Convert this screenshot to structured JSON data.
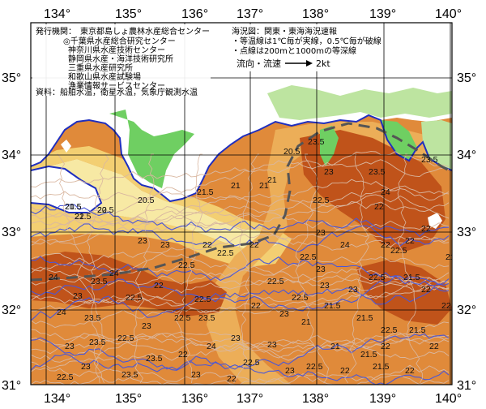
{
  "map": {
    "lon_labels": [
      "134°",
      "135°",
      "136°",
      "137°",
      "138°",
      "139°",
      "140°"
    ],
    "lat_labels": [
      "35°",
      "34°",
      "33°",
      "32°",
      "31°"
    ],
    "colors": {
      "sea_warm": "#e08a3a",
      "sea_hot": "#c0531a",
      "sea_mid": "#ecae58",
      "sea_cool": "#f3cf72",
      "sea_cold": "#f7e9a4",
      "land_white": "#ffffff",
      "land_green_light": "#bde4a0",
      "land_green": "#6fcf62",
      "coast_blue": "#1f2fbf",
      "isotherm_light": "#d9b7a0",
      "isotherm_blue": "#4a57d8",
      "current_line": "#555555",
      "grid": "#000000"
    },
    "isotherm_labels": [
      "20.5",
      "21",
      "20.5",
      "20.5",
      "21.5",
      "21",
      "21",
      "20.5",
      "21",
      "22",
      "22.5",
      "23",
      "23.5",
      "23",
      "23.5",
      "24",
      "23.5",
      "22",
      "22",
      "22",
      "22.5",
      "23",
      "23",
      "22.5",
      "22",
      "22.5",
      "22",
      "22.5",
      "23",
      "24",
      "23",
      "23.5",
      "24",
      "23.5",
      "24",
      "22.5",
      "22",
      "22.5",
      "23",
      "23.5",
      "22.5",
      "23.5",
      "22",
      "24",
      "23",
      "22.5",
      "23",
      "23",
      "22.5",
      "21",
      "21.5",
      "22.5",
      "21.5",
      "22",
      "22",
      "21.5",
      "22",
      "22.5",
      "22.5",
      "23",
      "22",
      "21",
      "21.5",
      "23",
      "22.5",
      "21.5",
      "22",
      "21.5",
      "22.5",
      "22",
      "23",
      "23.5",
      "22.5",
      "23",
      "22.5",
      "23",
      "23.5",
      "23",
      "24",
      "22",
      "21.5",
      "21.5",
      "22.5",
      "22"
    ]
  },
  "info_box": {
    "lines": [
      "発行機関：　東京都島しょ農林水産総合センター",
      "◎千葉県水産総合研究センター",
      "神奈川県水産技術センター",
      "静岡県水産・海洋技術研究所",
      "三重県水産研究所",
      "和歌山県水産試験場",
      "漁業情報サービスセンター",
      "資料：船舶水温，衛星水温，気象庁観測水温"
    ]
  },
  "legend_box": {
    "lines": [
      "海況図：関東・東海海況速報",
      "・等温線は1℃毎が実線，0.5℃毎が破線",
      "・点線は200mと1000mの等深線"
    ],
    "flow_label": "流向・流速",
    "flow_value": "2kt"
  }
}
